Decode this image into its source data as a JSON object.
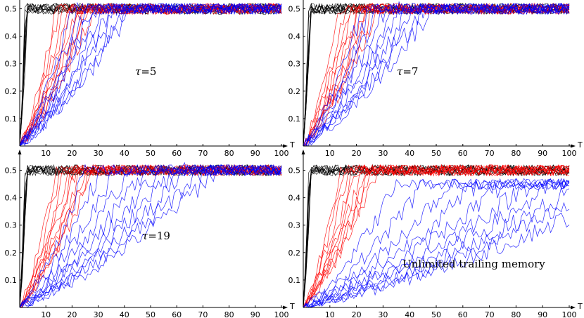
{
  "chart_data": [
    {
      "type": "line",
      "annotation": {
        "symbol": "τ",
        "value": "=5"
      },
      "xlabel": "T",
      "xlim": [
        0,
        100
      ],
      "ylim": [
        0,
        0.55
      ],
      "xticks": [
        "10",
        "20",
        "30",
        "40",
        "50",
        "60",
        "70",
        "80",
        "90",
        "100"
      ],
      "yticks": [
        "0.1",
        "0.2",
        "0.3",
        "0.4",
        "0.5"
      ],
      "series": [
        {
          "color": "#000000",
          "count": 10,
          "plateau": 0.5,
          "rise_end": [
            2,
            3
          ],
          "noise": 0.02
        },
        {
          "color": "#ff0000",
          "count": 10,
          "plateau": 0.5,
          "rise_end": [
            14,
            28
          ],
          "noise": 0.02
        },
        {
          "color": "#0000ff",
          "count": 10,
          "plateau": 0.5,
          "rise_end": [
            20,
            42
          ],
          "noise": 0.02
        }
      ]
    },
    {
      "type": "line",
      "annotation": {
        "symbol": "τ",
        "value": "=7"
      },
      "xlabel": "T",
      "xlim": [
        0,
        100
      ],
      "ylim": [
        0,
        0.55
      ],
      "xticks": [
        "10",
        "20",
        "30",
        "40",
        "50",
        "60",
        "70",
        "80",
        "90",
        "100"
      ],
      "yticks": [
        "0.1",
        "0.2",
        "0.3",
        "0.4",
        "0.5"
      ],
      "series": [
        {
          "color": "#000000",
          "count": 10,
          "plateau": 0.5,
          "rise_end": [
            2,
            3
          ],
          "noise": 0.02
        },
        {
          "color": "#ff0000",
          "count": 10,
          "plateau": 0.5,
          "rise_end": [
            14,
            28
          ],
          "noise": 0.02
        },
        {
          "color": "#0000ff",
          "count": 10,
          "plateau": 0.5,
          "rise_end": [
            22,
            48
          ],
          "noise": 0.02
        }
      ]
    },
    {
      "type": "line",
      "annotation": {
        "symbol": "τ",
        "value": "=19"
      },
      "xlabel": "T",
      "xlim": [
        0,
        100
      ],
      "ylim": [
        0,
        0.55
      ],
      "xticks": [
        "10",
        "20",
        "30",
        "40",
        "50",
        "60",
        "70",
        "80",
        "90",
        "100"
      ],
      "yticks": [
        "0.1",
        "0.2",
        "0.3",
        "0.4",
        "0.5"
      ],
      "series": [
        {
          "color": "#000000",
          "count": 10,
          "plateau": 0.5,
          "rise_end": [
            2,
            3
          ],
          "noise": 0.02
        },
        {
          "color": "#ff0000",
          "count": 10,
          "plateau": 0.5,
          "rise_end": [
            14,
            28
          ],
          "noise": 0.02
        },
        {
          "color": "#0000ff",
          "count": 10,
          "plateau": 0.5,
          "rise_end": [
            25,
            75
          ],
          "noise": 0.02
        }
      ]
    },
    {
      "type": "line",
      "annotation": {
        "symbol": "",
        "value": "Unlimited trailing memory"
      },
      "xlabel": "T",
      "xlim": [
        0,
        100
      ],
      "ylim": [
        0,
        0.55
      ],
      "xticks": [
        "10",
        "20",
        "30",
        "40",
        "50",
        "60",
        "70",
        "80",
        "90",
        "100"
      ],
      "yticks": [
        "0.1",
        "0.2",
        "0.3",
        "0.4",
        "0.5"
      ],
      "series": [
        {
          "color": "#000000",
          "count": 10,
          "plateau": 0.5,
          "rise_end": [
            2,
            3
          ],
          "noise": 0.02
        },
        {
          "color": "#ff0000",
          "count": 10,
          "plateau": 0.5,
          "rise_end": [
            14,
            28
          ],
          "noise": 0.02
        },
        {
          "color": "#0000ff",
          "count": 10,
          "plateau": 0.45,
          "rise_end": [
            35,
            125
          ],
          "noise": 0.02
        }
      ]
    }
  ]
}
